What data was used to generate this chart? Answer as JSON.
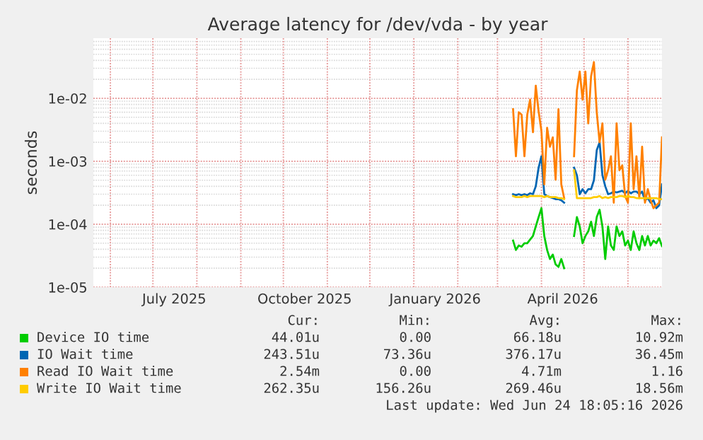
{
  "chart_data": {
    "type": "line",
    "title": "Average latency for /dev/vda - by year",
    "ylabel": "seconds",
    "log": "y",
    "grid": true,
    "legend": "bottom",
    "marker": "none",
    "line_style": "solid",
    "xlim": [
      "2025-05-20",
      "2026-06-25"
    ],
    "xticks": [
      {
        "value": "2025-06-01",
        "label": null
      },
      {
        "value": "2025-07-01",
        "label": null
      },
      {
        "value": "2025-07-16",
        "label": "July 2025"
      },
      {
        "value": "2025-08-01",
        "label": null
      },
      {
        "value": "2025-09-01",
        "label": null
      },
      {
        "value": "2025-10-01",
        "label": null
      },
      {
        "value": "2025-10-16",
        "label": "October 2025"
      },
      {
        "value": "2025-11-01",
        "label": null
      },
      {
        "value": "2025-12-01",
        "label": null
      },
      {
        "value": "2026-01-01",
        "label": null
      },
      {
        "value": "2026-01-16",
        "label": "January 2026"
      },
      {
        "value": "2026-02-01",
        "label": null
      },
      {
        "value": "2026-03-01",
        "label": null
      },
      {
        "value": "2026-04-01",
        "label": null
      },
      {
        "value": "2026-04-16",
        "label": "April 2026"
      },
      {
        "value": "2026-05-01",
        "label": null
      },
      {
        "value": "2026-06-01",
        "label": null
      }
    ],
    "ylim": [
      1e-05,
      0.09
    ],
    "yticks": [
      {
        "value": 1e-05,
        "label": "1e-05"
      },
      {
        "value": 0.0001,
        "label": "1e-04"
      },
      {
        "value": 0.001,
        "label": "1e-03"
      },
      {
        "value": 0.01,
        "label": "1e-02"
      }
    ],
    "x": [
      "2026-03-12",
      "2026-03-14",
      "2026-03-16",
      "2026-03-18",
      "2026-03-20",
      "2026-03-22",
      "2026-03-24",
      "2026-03-26",
      "2026-03-28",
      "2026-03-30",
      "2026-04-01",
      "2026-04-03",
      "2026-04-05",
      "2026-04-07",
      "2026-04-09",
      "2026-04-11",
      "2026-04-13",
      "2026-04-15",
      "2026-04-17",
      "2026-04-20",
      "2026-04-24",
      "2026-04-26",
      "2026-04-28",
      "2026-04-30",
      "2026-05-02",
      "2026-05-04",
      "2026-05-06",
      "2026-05-08",
      "2026-05-10",
      "2026-05-12",
      "2026-05-14",
      "2026-05-16",
      "2026-05-18",
      "2026-05-20",
      "2026-05-22",
      "2026-05-24",
      "2026-05-26",
      "2026-05-28",
      "2026-05-30",
      "2026-06-01",
      "2026-06-03",
      "2026-06-05",
      "2026-06-07",
      "2026-06-09",
      "2026-06-11",
      "2026-06-13",
      "2026-06-15",
      "2026-06-17",
      "2026-06-19",
      "2026-06-21",
      "2026-06-23",
      "2026-06-25"
    ],
    "series": [
      {
        "name": "Device IO time",
        "color": "#00cc00",
        "values": [
          5.5e-05,
          3.9e-05,
          4.6e-05,
          4.4e-05,
          5e-05,
          5e-05,
          5.7e-05,
          6.5e-05,
          9.2e-05,
          0.00013,
          0.00018,
          6.5e-05,
          3.9e-05,
          2.8e-05,
          3.3e-05,
          2.3e-05,
          2.1e-05,
          2.8e-05,
          2e-05,
          null,
          6.5e-05,
          0.00013,
          9.2e-05,
          5e-05,
          6.5e-05,
          7.7e-05,
          0.00011,
          6.5e-05,
          0.00013,
          0.00017,
          9.2e-05,
          2.8e-05,
          9.2e-05,
          4.6e-05,
          3.9e-05,
          9.2e-05,
          6.5e-05,
          7.7e-05,
          4.6e-05,
          5.5e-05,
          3.9e-05,
          7.7e-05,
          5e-05,
          3.9e-05,
          6.5e-05,
          4.6e-05,
          6.5e-05,
          4.6e-05,
          5.5e-05,
          5e-05,
          6e-05,
          4.5e-05
        ]
      },
      {
        "name": "IO Wait time",
        "color": "#0066b3",
        "values": [
          0.0003,
          0.00029,
          0.0003,
          0.00029,
          0.0003,
          0.00029,
          0.00031,
          0.0003,
          0.0004,
          0.00079,
          0.0012,
          0.0003,
          0.00028,
          0.00027,
          0.00026,
          0.00025,
          0.00025,
          0.00024,
          0.00022,
          null,
          0.00079,
          0.0006,
          0.0003,
          0.00036,
          0.00031,
          0.00036,
          0.00036,
          0.0005,
          0.0015,
          0.002,
          0.0006,
          0.0004,
          0.0003,
          0.00031,
          0.00033,
          0.00032,
          0.00033,
          0.00034,
          0.00031,
          0.00034,
          0.00031,
          0.00033,
          0.00033,
          0.0003,
          0.00033,
          0.00024,
          0.00026,
          0.00022,
          0.00024,
          0.00018,
          0.0002,
          0.00043
        ]
      },
      {
        "name": "Read IO Wait time",
        "color": "#ff8000",
        "values": [
          0.0067,
          0.0012,
          0.006,
          0.0055,
          0.0012,
          0.0055,
          0.0095,
          0.0029,
          0.0159,
          0.0062,
          0.003,
          0.00043,
          0.0034,
          0.0017,
          0.0024,
          0.00051,
          0.0067,
          0.00043,
          0.00026,
          null,
          0.0012,
          0.0134,
          0.0266,
          0.0095,
          0.0266,
          0.004,
          0.0224,
          0.0376,
          0.006,
          0.002,
          0.004,
          0.00051,
          0.00072,
          0.0012,
          0.00022,
          0.004,
          0.00072,
          0.00086,
          0.00028,
          0.00022,
          0.004,
          0.00036,
          0.0012,
          0.00026,
          0.0017,
          0.00022,
          0.00036,
          0.00024,
          0.00018,
          0.0002,
          0.00022,
          0.0024
        ]
      },
      {
        "name": "Write IO Wait time",
        "color": "#ffcc00",
        "values": [
          0.00028,
          0.00027,
          0.00027,
          0.00027,
          0.00028,
          0.00027,
          0.00028,
          0.00028,
          0.00028,
          0.00028,
          0.00028,
          0.00027,
          0.00028,
          0.00027,
          0.00027,
          0.00027,
          0.00026,
          0.00026,
          0.00025,
          null,
          0.00072,
          0.00026,
          0.00026,
          0.00026,
          0.00026,
          0.00026,
          0.00026,
          0.00027,
          0.00027,
          0.00028,
          0.00026,
          0.00027,
          0.00026,
          0.00027,
          0.00027,
          0.00027,
          0.00028,
          0.00028,
          0.00027,
          0.00028,
          0.00027,
          0.00027,
          0.00026,
          0.00026,
          0.00026,
          0.00026,
          0.00026,
          0.00026,
          0.00026,
          0.00026,
          0.00025,
          0.00025
        ]
      }
    ],
    "annotations": [
      "Cur:",
      "Min:",
      "Avg:",
      "Max:",
      "44.01u",
      "0.00",
      "66.18u",
      "10.92m",
      "243.51u",
      "73.36u",
      "376.17u",
      "36.45m",
      "2.54m",
      "0.00",
      "4.71m",
      "1.16",
      "262.35u",
      "156.26u",
      "269.46u",
      "18.56m",
      "Last update: Wed Jun 24 18:05:16 2026"
    ]
  }
}
